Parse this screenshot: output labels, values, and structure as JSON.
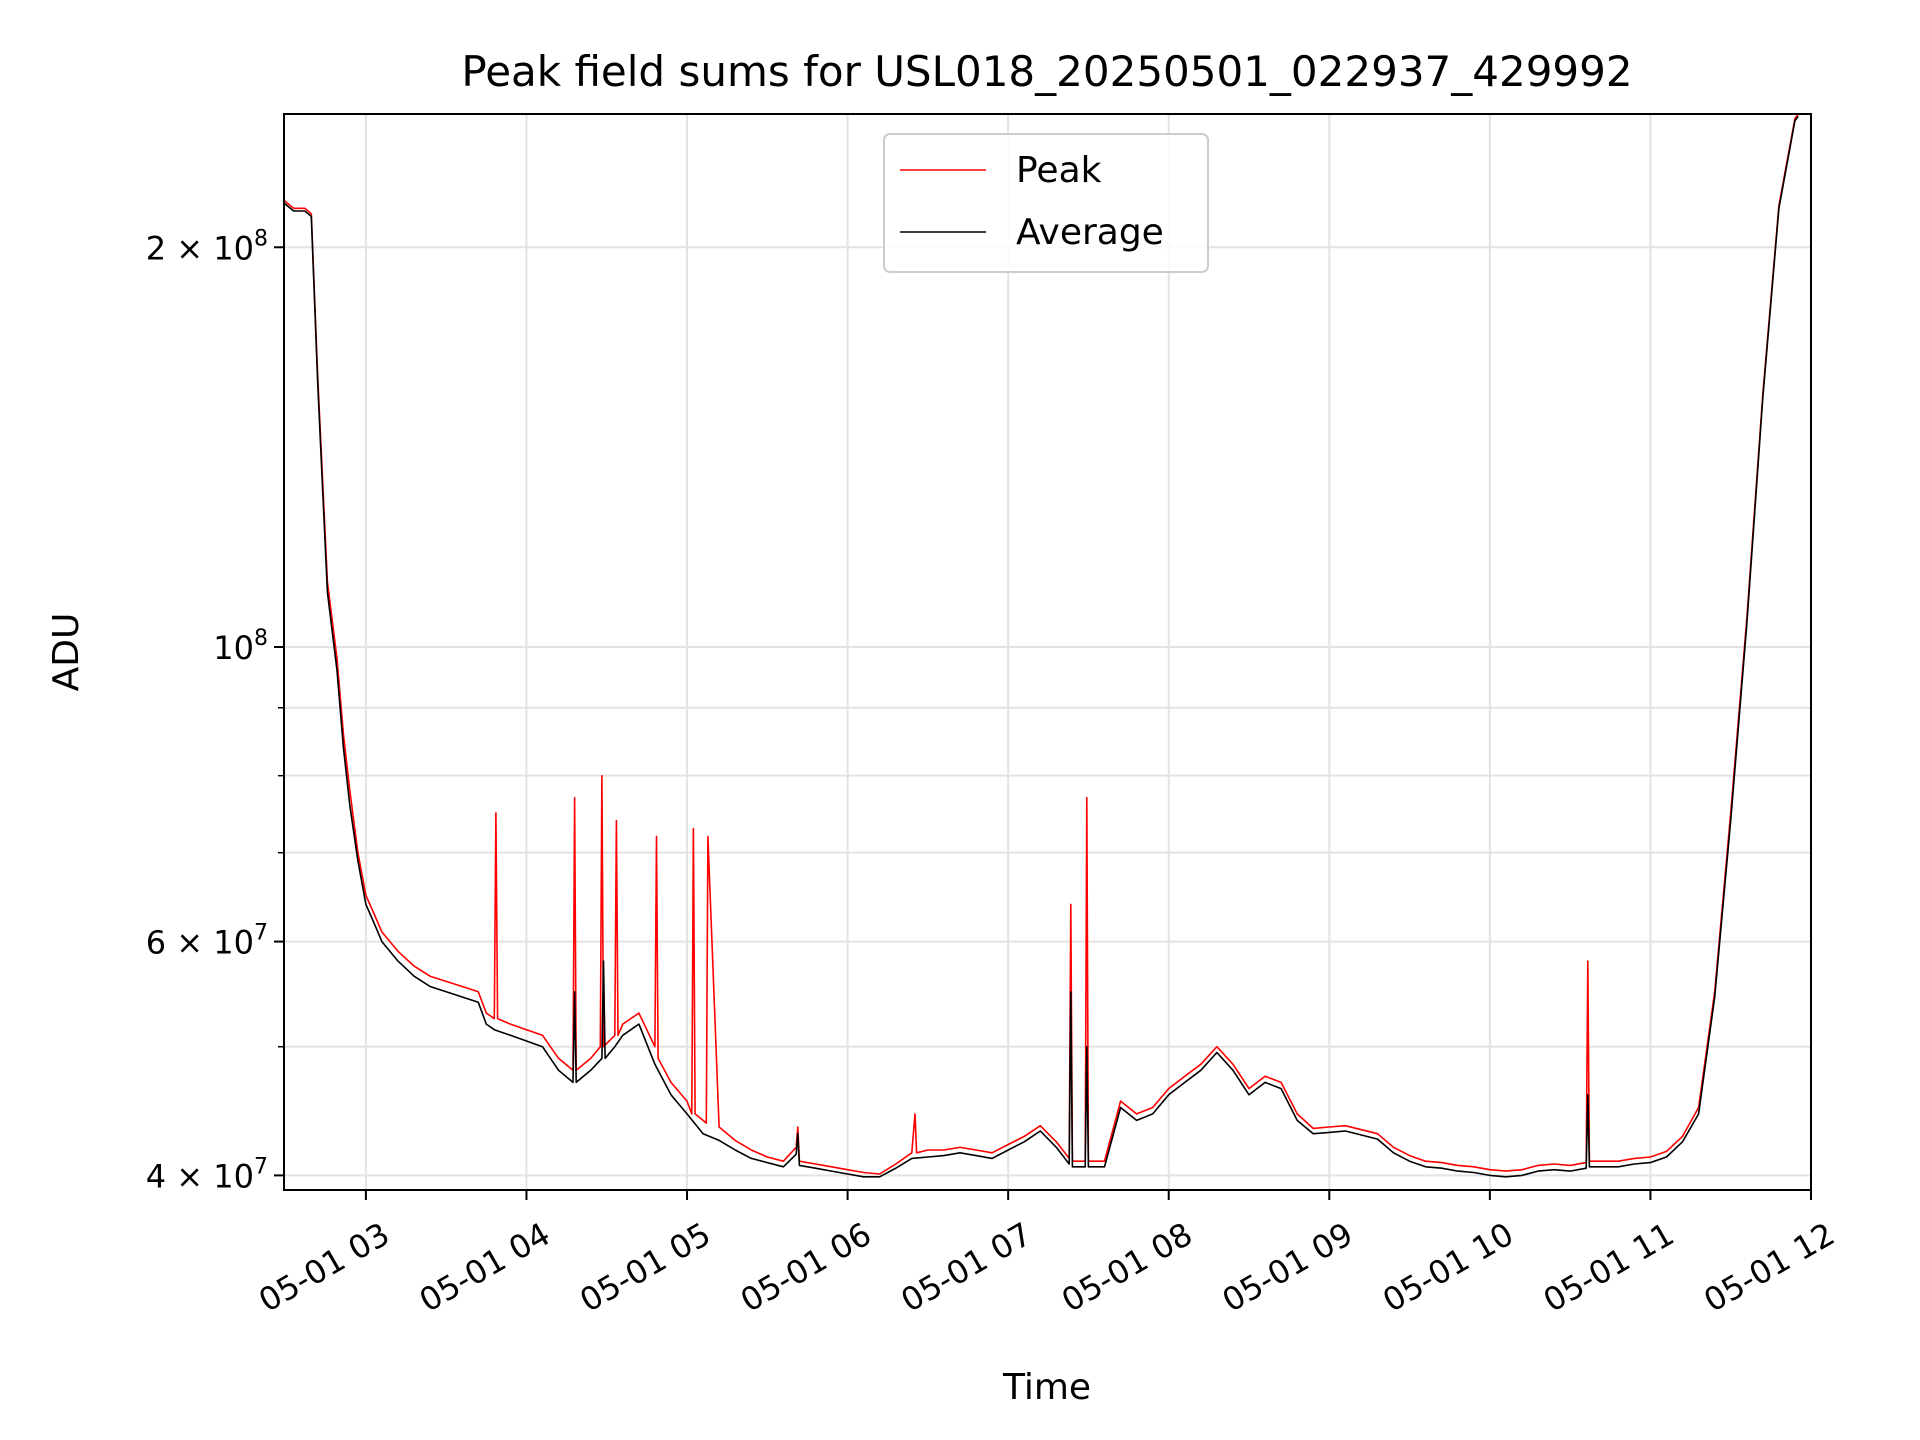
{
  "chart_data": {
    "type": "line",
    "title": "Peak field sums for USL018_20250501_022937_429992",
    "xlabel": "Time",
    "ylabel": "ADU",
    "yscale": "log",
    "xlim": [
      2.49,
      12.0
    ],
    "ylim": [
      39000000,
      252000000
    ],
    "grid": true,
    "legend_position": "top-center",
    "x_ticks": [
      {
        "value": 3,
        "label": "05-01 03"
      },
      {
        "value": 4,
        "label": "05-01 04"
      },
      {
        "value": 5,
        "label": "05-01 05"
      },
      {
        "value": 6,
        "label": "05-01 06"
      },
      {
        "value": 7,
        "label": "05-01 07"
      },
      {
        "value": 8,
        "label": "05-01 08"
      },
      {
        "value": 9,
        "label": "05-01 09"
      },
      {
        "value": 10,
        "label": "05-01 10"
      },
      {
        "value": 11,
        "label": "05-01 11"
      },
      {
        "value": 12,
        "label": "05-01 12"
      }
    ],
    "y_ticks": [
      {
        "value": 40000000,
        "base": "4 × 10",
        "exp": "7"
      },
      {
        "value": 60000000,
        "base": "6 × 10",
        "exp": "7"
      },
      {
        "value": 100000000,
        "base": "10",
        "exp": "8"
      },
      {
        "value": 200000000,
        "base": "2 × 10",
        "exp": "8"
      }
    ],
    "y_minor_ticks": [
      50000000,
      70000000,
      80000000,
      90000000
    ],
    "series": [
      {
        "name": "Peak",
        "color": "#ff0000",
        "x": [
          2.49,
          2.55,
          2.62,
          2.66,
          2.7,
          2.76,
          2.82,
          2.86,
          2.9,
          2.95,
          3.0,
          3.05,
          3.1,
          3.2,
          3.3,
          3.4,
          3.5,
          3.6,
          3.7,
          3.75,
          3.8,
          3.81,
          3.82,
          3.9,
          4.0,
          4.1,
          4.2,
          4.29,
          4.3,
          4.31,
          4.4,
          4.46,
          4.47,
          4.48,
          4.55,
          4.56,
          4.57,
          4.6,
          4.7,
          4.8,
          4.81,
          4.82,
          4.9,
          5.0,
          5.03,
          5.04,
          5.05,
          5.1,
          5.12,
          5.13,
          5.2,
          5.3,
          5.4,
          5.5,
          5.6,
          5.68,
          5.69,
          5.7,
          5.8,
          5.9,
          6.0,
          6.1,
          6.2,
          6.3,
          6.4,
          6.42,
          6.43,
          6.5,
          6.6,
          6.7,
          6.8,
          6.9,
          7.0,
          7.1,
          7.2,
          7.3,
          7.38,
          7.39,
          7.4,
          7.48,
          7.49,
          7.5,
          7.6,
          7.7,
          7.8,
          7.9,
          8.0,
          8.1,
          8.2,
          8.3,
          8.4,
          8.5,
          8.6,
          8.7,
          8.8,
          8.9,
          9.0,
          9.1,
          9.2,
          9.3,
          9.4,
          9.5,
          9.6,
          9.7,
          9.8,
          9.9,
          10.0,
          10.1,
          10.2,
          10.3,
          10.4,
          10.5,
          10.6,
          10.61,
          10.62,
          10.7,
          10.8,
          10.9,
          11.0,
          11.1,
          11.2,
          11.3,
          11.4,
          11.5,
          11.6,
          11.7,
          11.8,
          11.9,
          11.92
        ],
        "y": [
          217000000,
          214000000,
          214000000,
          212000000,
          160000000,
          112000000,
          98000000,
          86000000,
          78000000,
          70000000,
          65000000,
          63000000,
          61000000,
          59000000,
          57500000,
          56500000,
          56000000,
          55500000,
          55000000,
          53000000,
          52500000,
          75000000,
          52500000,
          52000000,
          51500000,
          51000000,
          49000000,
          48000000,
          77000000,
          48000000,
          49000000,
          50000000,
          80000000,
          50000000,
          51000000,
          74000000,
          51000000,
          52000000,
          53000000,
          50000000,
          72000000,
          49000000,
          47000000,
          45500000,
          44500000,
          73000000,
          44500000,
          44000000,
          43800000,
          72000000,
          43500000,
          42500000,
          41800000,
          41300000,
          41000000,
          42000000,
          43500000,
          41000000,
          40800000,
          40600000,
          40400000,
          40200000,
          40100000,
          40800000,
          41600000,
          44500000,
          41600000,
          41800000,
          41800000,
          42000000,
          41800000,
          41600000,
          42200000,
          42800000,
          43600000,
          42400000,
          41200000,
          64000000,
          41000000,
          41000000,
          77000000,
          41000000,
          41000000,
          45500000,
          44500000,
          45000000,
          46500000,
          47500000,
          48500000,
          50000000,
          48500000,
          46500000,
          47500000,
          47000000,
          44500000,
          43400000,
          43500000,
          43600000,
          43300000,
          43000000,
          42000000,
          41400000,
          41000000,
          40900000,
          40700000,
          40600000,
          40400000,
          40300000,
          40400000,
          40700000,
          40800000,
          40700000,
          40900000,
          58000000,
          41000000,
          41000000,
          41000000,
          41200000,
          41300000,
          41700000,
          42800000,
          45000000,
          55000000,
          75000000,
          105000000,
          155000000,
          215000000,
          250000000,
          252000000
        ]
      },
      {
        "name": "Average",
        "color": "#000000",
        "x": [
          2.49,
          2.55,
          2.62,
          2.66,
          2.7,
          2.76,
          2.82,
          2.86,
          2.9,
          2.95,
          3.0,
          3.05,
          3.1,
          3.2,
          3.3,
          3.4,
          3.5,
          3.6,
          3.7,
          3.75,
          3.8,
          3.9,
          4.0,
          4.1,
          4.2,
          4.29,
          4.3,
          4.31,
          4.4,
          4.47,
          4.48,
          4.49,
          4.55,
          4.6,
          4.7,
          4.8,
          4.9,
          5.0,
          5.1,
          5.2,
          5.3,
          5.4,
          5.5,
          5.6,
          5.68,
          5.69,
          5.7,
          5.8,
          5.9,
          6.0,
          6.1,
          6.2,
          6.3,
          6.4,
          6.5,
          6.6,
          6.7,
          6.8,
          6.9,
          7.0,
          7.1,
          7.2,
          7.3,
          7.38,
          7.39,
          7.4,
          7.48,
          7.49,
          7.5,
          7.6,
          7.7,
          7.8,
          7.9,
          8.0,
          8.1,
          8.2,
          8.3,
          8.4,
          8.5,
          8.6,
          8.7,
          8.8,
          8.9,
          9.0,
          9.1,
          9.2,
          9.3,
          9.4,
          9.5,
          9.6,
          9.7,
          9.8,
          9.9,
          10.0,
          10.1,
          10.2,
          10.3,
          10.4,
          10.5,
          10.6,
          10.61,
          10.62,
          10.7,
          10.8,
          10.9,
          11.0,
          11.1,
          11.2,
          11.3,
          11.4,
          11.5,
          11.6,
          11.7,
          11.8,
          11.9,
          11.92
        ],
        "y": [
          216000000,
          213000000,
          213000000,
          211000000,
          158000000,
          110000000,
          96000000,
          84000000,
          76000000,
          69000000,
          64000000,
          62000000,
          60000000,
          58000000,
          56500000,
          55500000,
          55000000,
          54500000,
          54000000,
          52000000,
          51500000,
          51000000,
          50500000,
          50000000,
          48000000,
          47000000,
          55000000,
          47000000,
          48000000,
          49000000,
          58000000,
          49000000,
          50000000,
          51000000,
          52000000,
          48500000,
          46000000,
          44500000,
          43000000,
          42500000,
          41800000,
          41200000,
          40900000,
          40600000,
          41500000,
          43000000,
          40700000,
          40500000,
          40300000,
          40100000,
          39900000,
          39900000,
          40500000,
          41200000,
          41300000,
          41400000,
          41600000,
          41400000,
          41200000,
          41800000,
          42400000,
          43200000,
          42000000,
          40800000,
          55000000,
          40600000,
          40600000,
          50000000,
          40600000,
          40600000,
          45000000,
          44000000,
          44500000,
          46000000,
          47000000,
          48000000,
          49500000,
          48000000,
          46000000,
          47000000,
          46500000,
          44000000,
          43000000,
          43100000,
          43200000,
          42900000,
          42600000,
          41600000,
          41000000,
          40600000,
          40500000,
          40300000,
          40200000,
          40000000,
          39900000,
          40000000,
          40300000,
          40400000,
          40300000,
          40500000,
          46000000,
          40600000,
          40600000,
          40600000,
          40800000,
          40900000,
          41300000,
          42400000,
          44500000,
          54500000,
          74000000,
          104000000,
          154000000,
          214000000,
          249000000,
          251000000
        ]
      }
    ]
  }
}
